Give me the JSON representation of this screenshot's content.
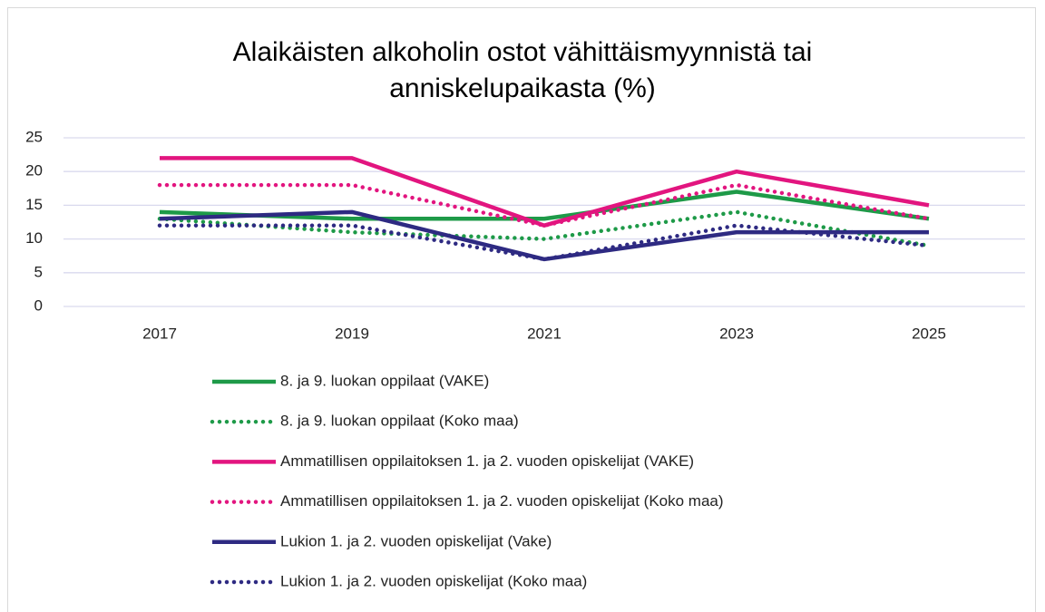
{
  "chart_data": {
    "type": "line",
    "title": "Alaikäisten alkoholin ostot vähittäismyynnistä tai anniskelupaikasta (%)",
    "categories": [
      "2017",
      "2019",
      "2021",
      "2023",
      "2025"
    ],
    "series": [
      {
        "name": "8. ja 9. luokan oppilaat (VAKE)",
        "color": "#1e9a48",
        "line_style": "solid",
        "values": [
          14,
          13,
          13,
          17,
          13
        ]
      },
      {
        "name": "8. ja 9. luokan oppilaat (Koko maa)",
        "color": "#1e9a48",
        "line_style": "dotted",
        "values": [
          13,
          11,
          10,
          14,
          9
        ]
      },
      {
        "name": "Ammatillisen oppilaitoksen 1. ja 2. vuoden opiskelijat (VAKE)",
        "color": "#e2157f",
        "line_style": "solid",
        "values": [
          22,
          22,
          12,
          20,
          15
        ]
      },
      {
        "name": "Ammatillisen oppilaitoksen 1. ja 2. vuoden opiskelijat (Koko maa)",
        "color": "#e2157f",
        "line_style": "dotted",
        "values": [
          18,
          18,
          12,
          18,
          13
        ]
      },
      {
        "name": "Lukion 1. ja 2. vuoden opiskelijat (Vake)",
        "color": "#2e2a82",
        "line_style": "solid",
        "values": [
          13,
          14,
          7,
          11,
          11
        ]
      },
      {
        "name": "Lukion 1. ja 2. vuoden opiskelijat (Koko maa)",
        "color": "#2e2a82",
        "line_style": "dotted",
        "values": [
          12,
          12,
          7,
          12,
          9
        ]
      }
    ],
    "ylim": [
      0,
      25
    ],
    "yticks": [
      0,
      5,
      10,
      15,
      20,
      25
    ],
    "grid": true,
    "legend_position": "bottom"
  }
}
